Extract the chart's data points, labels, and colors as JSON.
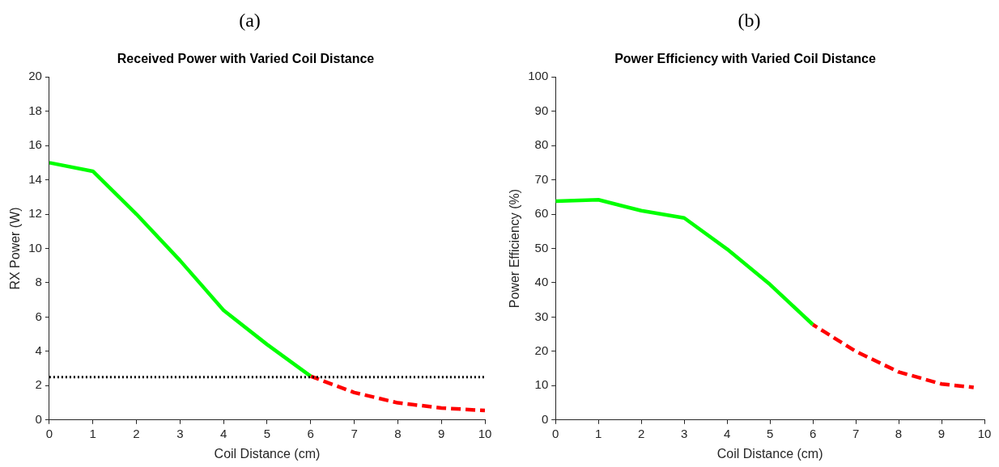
{
  "chart_data": [
    {
      "type": "line",
      "annotations": [
        "(a)"
      ],
      "title": "Received Power with Varied Coil Distance",
      "xlabel": "Coil Distance (cm)",
      "ylabel": "RX Power (W)",
      "xlim": [
        0,
        10
      ],
      "xticks": [
        0,
        1,
        2,
        3,
        4,
        5,
        6,
        7,
        8,
        9,
        10
      ],
      "ylim": [
        0,
        20
      ],
      "yticks": [
        0,
        2,
        4,
        6,
        8,
        10,
        12,
        14,
        16,
        18,
        20
      ],
      "grid": false,
      "legend": false,
      "marker": "none",
      "series": [
        {
          "color": "#00ff00",
          "line_style": "solid",
          "x": [
            0,
            1,
            2,
            3,
            4,
            5,
            6
          ],
          "values": [
            15,
            14.5,
            12,
            9.3,
            6.4,
            4.4,
            2.55
          ]
        },
        {
          "color": "#ff0000",
          "line_style": "dashed",
          "x": [
            6,
            7,
            8,
            9,
            10
          ],
          "values": [
            2.55,
            1.6,
            1.0,
            0.7,
            0.55
          ]
        }
      ],
      "ref_lines": [
        {
          "axis": "y",
          "value": 2.5,
          "color": "#000000",
          "line_style": "dotted"
        }
      ]
    },
    {
      "type": "line",
      "annotations": [
        "(b)"
      ],
      "title": "Power Efficiency with Varied Coil Distance",
      "xlabel": "Coil Distance (cm)",
      "ylabel": "Power Efficiency (%)",
      "xlim": [
        0,
        10
      ],
      "xticks": [
        0,
        1,
        2,
        3,
        4,
        5,
        6,
        7,
        8,
        9,
        10
      ],
      "ylim": [
        0,
        100
      ],
      "yticks": [
        0,
        10,
        20,
        30,
        40,
        50,
        60,
        70,
        80,
        90,
        100
      ],
      "grid": false,
      "legend": false,
      "marker": "none",
      "series": [
        {
          "color": "#00ff00",
          "line_style": "solid",
          "x": [
            0,
            1,
            2,
            3,
            4,
            5,
            6
          ],
          "values": [
            63.8,
            64.2,
            61,
            58.9,
            49.8,
            39.5,
            27.8
          ]
        },
        {
          "color": "#ff0000",
          "line_style": "dashed",
          "x": [
            6,
            7,
            8,
            9,
            9.75
          ],
          "values": [
            27.8,
            20,
            14,
            10.5,
            9.5
          ]
        }
      ]
    }
  ]
}
